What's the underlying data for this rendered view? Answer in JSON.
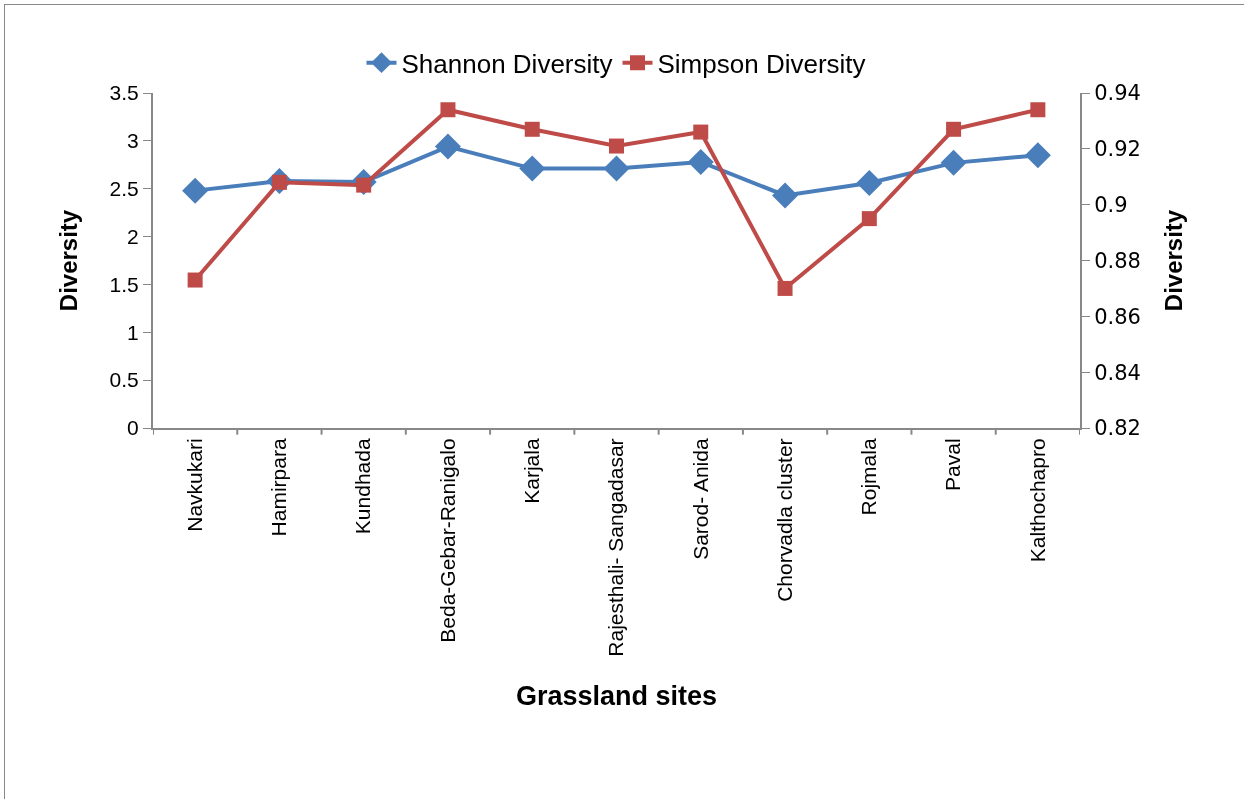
{
  "chart_data": {
    "type": "line",
    "xlabel": "Grassland sites",
    "ylabel": "Diversity",
    "y2label": "Diversity",
    "categories": [
      "Navkukari",
      "Hamirpara",
      "Kundhada",
      "Beda-Gebar-Ranigalo",
      "Karjala",
      "Rajesthali- Sangadasar",
      "Sarod- Anida",
      "Chorvadla cluster",
      "Rojmala",
      "Paval",
      "Kalthochapro"
    ],
    "series": [
      {
        "name": "Shannon Diversity",
        "color": "#4a7ebb",
        "marker": "diamond",
        "values": [
          2.48,
          2.58,
          2.57,
          2.94,
          2.71,
          2.71,
          2.78,
          2.43,
          2.56,
          2.77,
          2.85
        ]
      },
      {
        "name": "Simpson Diversity",
        "color": "#be4b48",
        "marker": "square",
        "axis": "y2",
        "values": [
          0.873,
          0.908,
          0.907,
          0.934,
          0.927,
          0.921,
          0.926,
          0.87,
          0.895,
          0.927,
          0.934
        ]
      }
    ],
    "ylim": [
      0,
      3.5
    ],
    "yticks": [
      0,
      0.5,
      1,
      1.5,
      2,
      2.5,
      3,
      3.5
    ],
    "y2lim": [
      0.82,
      0.94
    ],
    "y2ticks": [
      0.82,
      0.84,
      0.86,
      0.88,
      0.9,
      0.92,
      0.94
    ],
    "grid": false,
    "legend": "top",
    "line_style": "solid"
  }
}
